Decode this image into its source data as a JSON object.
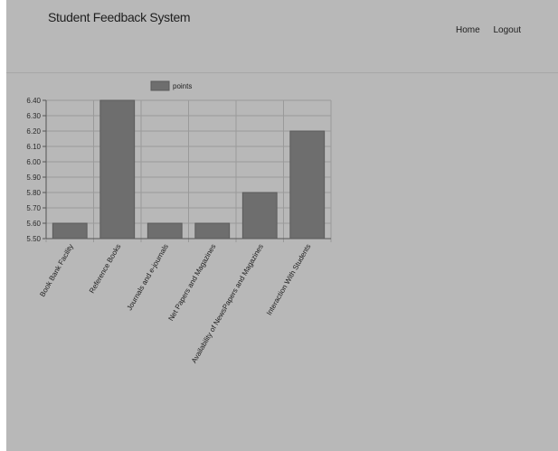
{
  "app": {
    "title": "Student Feedback System"
  },
  "nav": {
    "home": "Home",
    "logout": "Logout"
  },
  "colors": {
    "background": "#b8b8b8",
    "bar": "#6e6e6e",
    "bar_border": "#5a5a5a",
    "grid": "#9a9a9a"
  },
  "chart_data": {
    "type": "bar",
    "title": "",
    "xlabel": "",
    "ylabel": "",
    "legend": {
      "position": "top-center",
      "entries": [
        "points"
      ]
    },
    "grid": true,
    "ylim": [
      5.5,
      6.4
    ],
    "yticks": [
      "6.40",
      "6.30",
      "6.20",
      "6.10",
      "6.00",
      "5.90",
      "5.80",
      "5.70",
      "5.60",
      "5.50"
    ],
    "categories": [
      "Book Bank Facility",
      "Reference Books",
      "Journals and e-journals",
      "Net Papers and Magazines",
      "Availability of NewsPapers and Magazines",
      "Interaction With Students"
    ],
    "series": [
      {
        "name": "points",
        "values": [
          5.6,
          6.4,
          5.6,
          5.6,
          5.8,
          6.2
        ]
      }
    ]
  }
}
